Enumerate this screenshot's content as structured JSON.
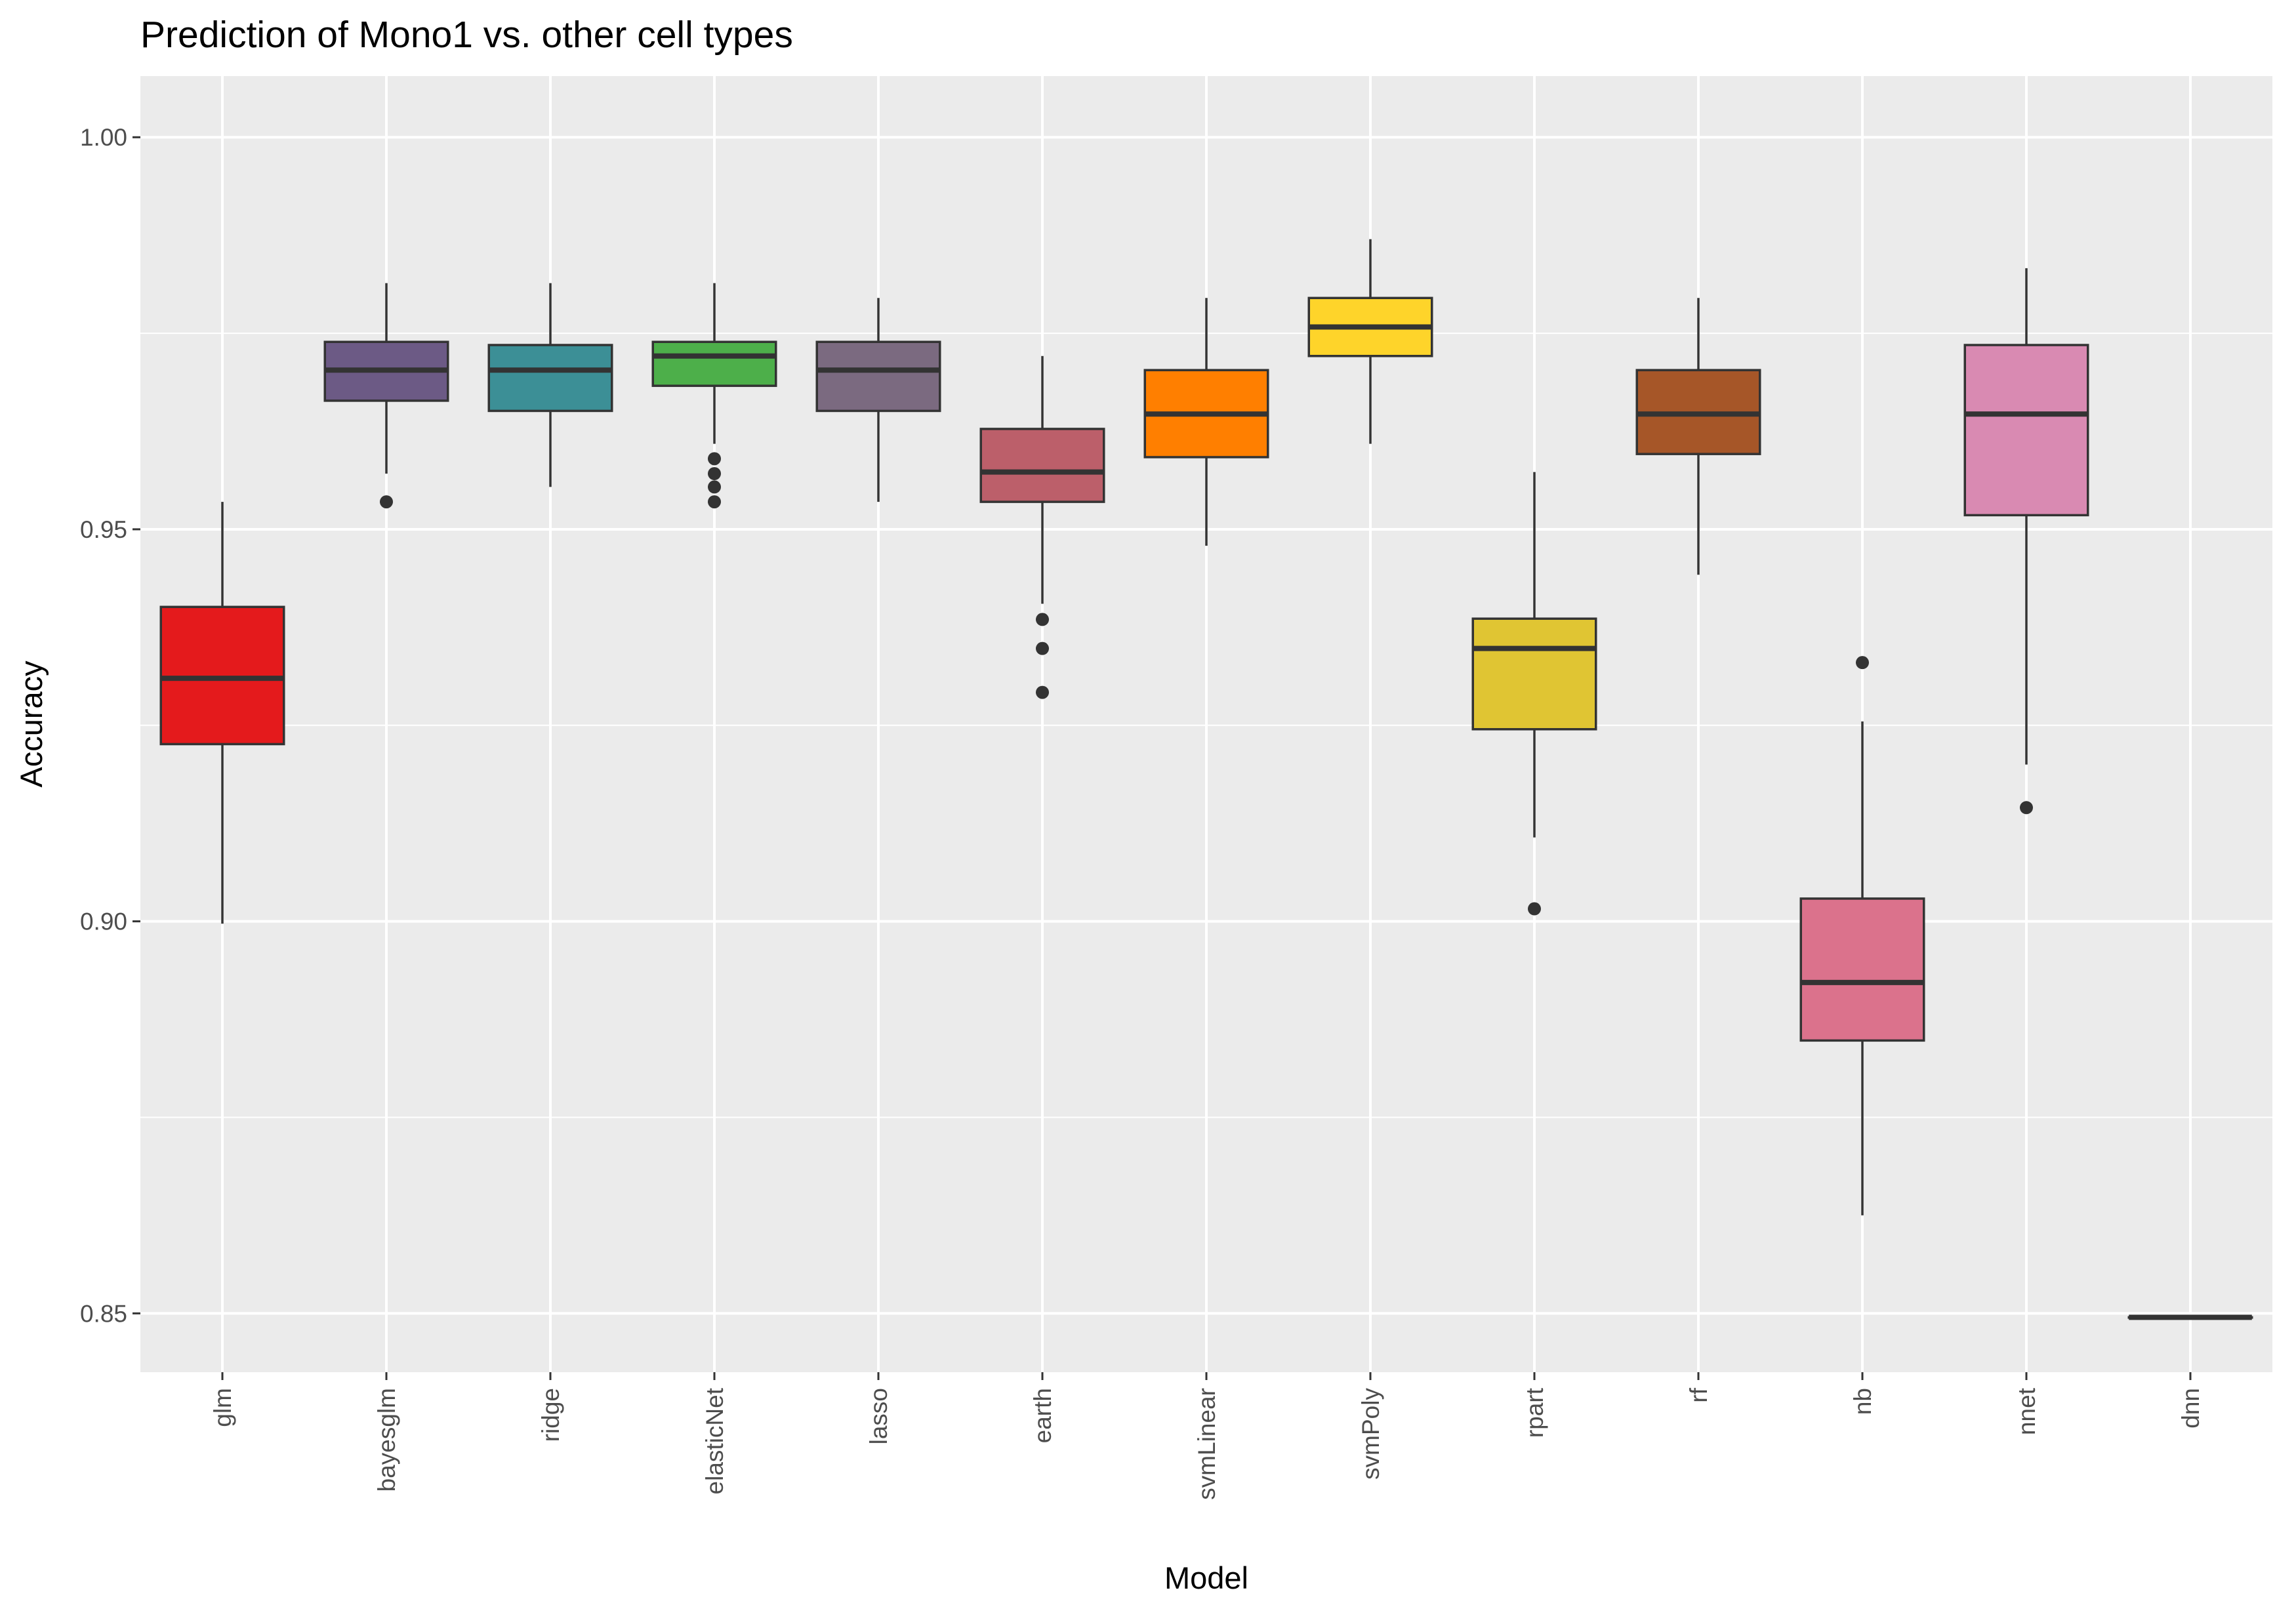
{
  "chart_data": {
    "type": "boxplot",
    "title": "Prediction of Mono1 vs. other cell types",
    "xlabel": "Model",
    "ylabel": "Accuracy",
    "ylim": [
      0.8425,
      1.0078
    ],
    "yticks": [
      {
        "value": 0.85,
        "label": "0.85"
      },
      {
        "value": 0.9,
        "label": "0.90"
      },
      {
        "value": 0.95,
        "label": "0.95"
      },
      {
        "value": 1.0,
        "label": "1.00"
      }
    ],
    "grid": true,
    "legend": "none",
    "categories": [
      "glm",
      "bayesglm",
      "ridge",
      "elasticNet",
      "lasso",
      "earth",
      "svmLinear",
      "svmPoly",
      "rpart",
      "rf",
      "nb",
      "nnet",
      "dnn"
    ],
    "boxes": [
      {
        "name": "glm",
        "color": "#e41a1c",
        "whisker_low": 0.8997,
        "q1": 0.9226,
        "median": 0.931,
        "q3": 0.9401,
        "whisker_high": 0.9535,
        "outliers": []
      },
      {
        "name": "bayesglm",
        "color": "#6c5a85",
        "whisker_low": 0.9571,
        "q1": 0.9664,
        "median": 0.9703,
        "q3": 0.9739,
        "whisker_high": 0.9814,
        "outliers": [
          0.9535
        ]
      },
      {
        "name": "ridge",
        "color": "#3c8f96",
        "whisker_low": 0.9554,
        "q1": 0.9651,
        "median": 0.9703,
        "q3": 0.9735,
        "whisker_high": 0.9814,
        "outliers": []
      },
      {
        "name": "elasticNet",
        "color": "#4daf4a",
        "whisker_low": 0.9609,
        "q1": 0.9683,
        "median": 0.9721,
        "q3": 0.9739,
        "whisker_high": 0.9814,
        "outliers": [
          0.959,
          0.9571,
          0.9554,
          0.9535
        ]
      },
      {
        "name": "lasso",
        "color": "#7b6a80",
        "whisker_low": 0.9535,
        "q1": 0.9651,
        "median": 0.9703,
        "q3": 0.9739,
        "whisker_high": 0.9795,
        "outliers": []
      },
      {
        "name": "earth",
        "color": "#bc5f6a",
        "whisker_low": 0.9405,
        "q1": 0.9535,
        "median": 0.9573,
        "q3": 0.9628,
        "whisker_high": 0.9721,
        "outliers": [
          0.9385,
          0.9348,
          0.9292
        ]
      },
      {
        "name": "svmLinear",
        "color": "#ff7f00",
        "whisker_low": 0.9479,
        "q1": 0.9592,
        "median": 0.9647,
        "q3": 0.9703,
        "whisker_high": 0.9795,
        "outliers": []
      },
      {
        "name": "svmPoly",
        "color": "#fed42a",
        "whisker_low": 0.9609,
        "q1": 0.9721,
        "median": 0.9758,
        "q3": 0.9795,
        "whisker_high": 0.987,
        "outliers": []
      },
      {
        "name": "rpart",
        "color": "#e0c533",
        "whisker_low": 0.9107,
        "q1": 0.9245,
        "median": 0.9348,
        "q3": 0.9386,
        "whisker_high": 0.9573,
        "outliers": [
          0.9016
        ]
      },
      {
        "name": "rf",
        "color": "#a65628",
        "whisker_low": 0.9442,
        "q1": 0.9596,
        "median": 0.9647,
        "q3": 0.9703,
        "whisker_high": 0.9795,
        "outliers": []
      },
      {
        "name": "nb",
        "color": "#db728c",
        "whisker_low": 0.8625,
        "q1": 0.8848,
        "median": 0.8922,
        "q3": 0.9029,
        "whisker_high": 0.9255,
        "outliers": [
          0.933
        ]
      },
      {
        "name": "nnet",
        "color": "#d98ab2",
        "whisker_low": 0.92,
        "q1": 0.9518,
        "median": 0.9647,
        "q3": 0.9735,
        "whisker_high": 0.9833,
        "outliers": [
          0.9145
        ]
      },
      {
        "name": "dnn",
        "color": "#f0a0c8",
        "whisker_low": 0.8495,
        "q1": 0.8495,
        "median": 0.8495,
        "q3": 0.8495,
        "whisker_high": 0.8495,
        "outliers": []
      }
    ]
  }
}
